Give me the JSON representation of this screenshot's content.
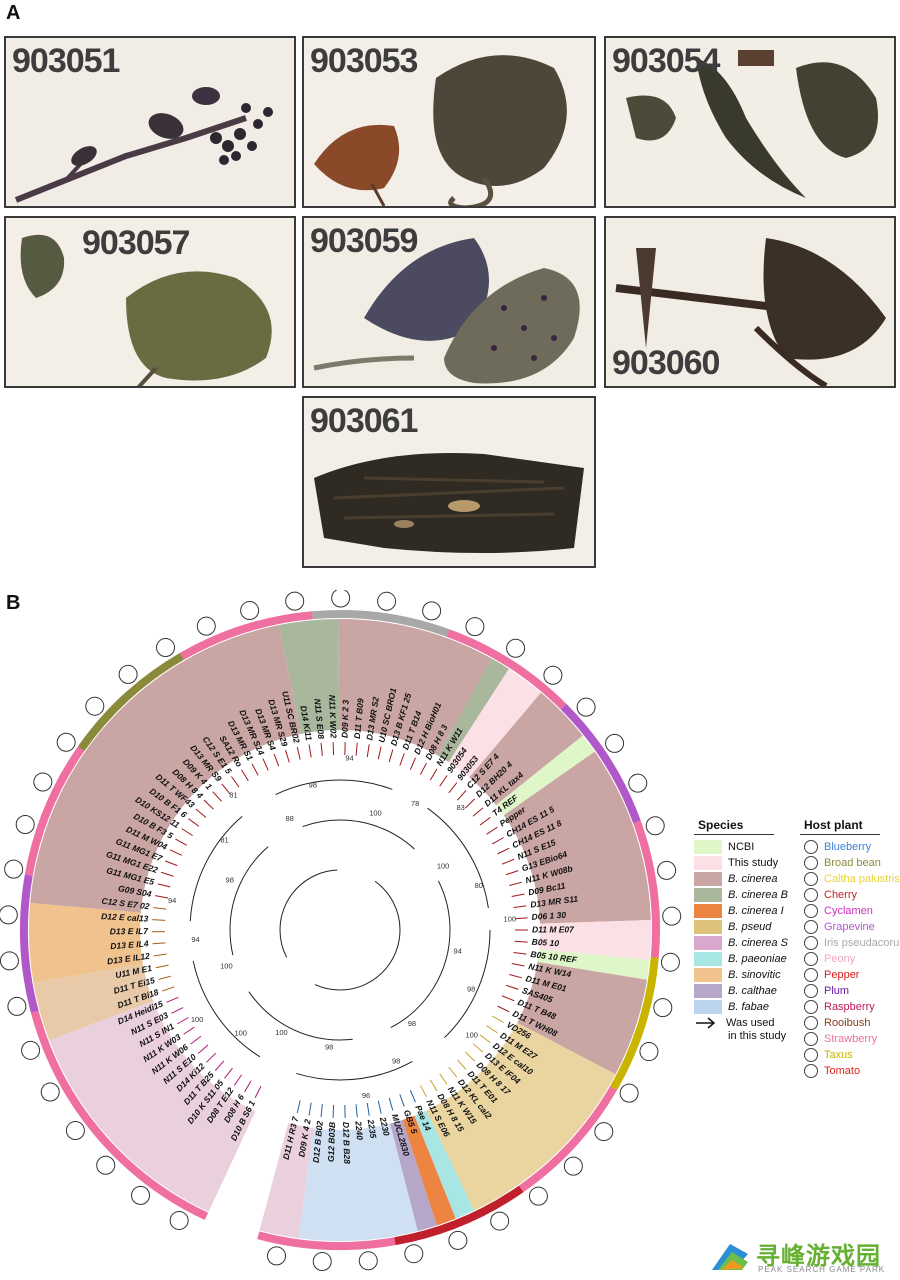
{
  "panel_a": {
    "letter": "A"
  },
  "panel_b": {
    "letter": "B"
  },
  "photos": [
    {
      "label": "903051"
    },
    {
      "label": "903053"
    },
    {
      "label": "903054"
    },
    {
      "label": "903057"
    },
    {
      "label": "903059"
    },
    {
      "label": "903060"
    },
    {
      "label": "903061"
    }
  ],
  "legend": {
    "species_header": "Species",
    "host_header": "Host plant",
    "species": [
      {
        "label": "NCBI",
        "color": "#dff7c8",
        "italic": false
      },
      {
        "label": "This study",
        "color": "#fbe0e6",
        "italic": false
      },
      {
        "label": "B. cinerea",
        "color": "#c9a5a3",
        "italic": true
      },
      {
        "label": "B. cinerea B",
        "color": "#a9b79c",
        "italic": true
      },
      {
        "label": "B. cinerea I",
        "color": "#ee8442",
        "italic": true
      },
      {
        "label": "B. pseud",
        "color": "#dcc27a",
        "italic": true
      },
      {
        "label": "B. cinerea S",
        "color": "#d9a8cc",
        "italic": true
      },
      {
        "label": "B. paeoniae",
        "color": "#a8e6e4",
        "italic": true
      },
      {
        "label": "B. sinovitic",
        "color": "#f0c28e",
        "italic": true
      },
      {
        "label": "B. calthae",
        "color": "#b6a6c8",
        "italic": true
      },
      {
        "label": "B. fabae",
        "color": "#b9d4ec",
        "italic": true
      }
    ],
    "hosts": [
      {
        "label": "Blueberry",
        "color": "#3f7fd6"
      },
      {
        "label": "Broad bean",
        "color": "#8a8a3a"
      },
      {
        "label": "Caltha palustris",
        "color": "#e8d43a"
      },
      {
        "label": "Cherry",
        "color": "#c0202c"
      },
      {
        "label": "Cyclamen",
        "color": "#cc2fc0"
      },
      {
        "label": "Grapevine",
        "color": "#b158c9"
      },
      {
        "label": "Iris pseudacorus",
        "color": "#a8a8a8"
      },
      {
        "label": "Peony",
        "color": "#f4a6c0"
      },
      {
        "label": "Pepper",
        "color": "#d81a1a"
      },
      {
        "label": "Plum",
        "color": "#6b17a8"
      },
      {
        "label": "Raspberry",
        "color": "#c2185b"
      },
      {
        "label": "Rooibush",
        "color": "#8b3a1a"
      },
      {
        "label": "Strawberry",
        "color": "#ee6fa0"
      },
      {
        "label": "Taxus",
        "color": "#c9b400"
      },
      {
        "label": "Tomato",
        "color": "#e0241b"
      }
    ],
    "used_note_line1": "Was used",
    "used_note_line2": "in this study"
  },
  "tree": {
    "leaves": [
      "D10 B S6 1",
      "D08 H 6",
      "D08 T E12",
      "D10 K S11 05",
      "D11 T B25",
      "D14 Ki12",
      "N11 S E10",
      "N11 K W06",
      "N11 K W03",
      "N11 S IN1",
      "N11 S E03",
      "D14 Heidi15",
      "D11 T Bi18",
      "D11 T Ei15",
      "U11 M E1",
      "D13 E IL12",
      "D13 E IL4",
      "D13 E IL7",
      "D12 E cal13",
      "C12 S E7 02",
      "G09 S04",
      "G11 MG1 E5",
      "G11 MG1 E22",
      "G11 MG1 E7",
      "D11 M W04",
      "D10 B F3 5",
      "D10 KS12 11",
      "D10 B F1 6",
      "D11 T WF43",
      "D08 H 8 4",
      "D09 K 4 1",
      "D13 MR S9",
      "C12 S E1 5",
      "SA12 Ro",
      "D13 MR S1",
      "D13 MR S14",
      "D13 MR S4",
      "D13 MR S29",
      "U11 SC BR02",
      "D14 Ki11",
      "N11 S E08",
      "N11 K W02",
      "D09 K 2 3",
      "D11 T B09",
      "D13 MR S2",
      "U10 SC BRO1",
      "D13 B KF1 25",
      "D11 T B14",
      "D12 H BioH01",
      "D08 H 8 3",
      "N11 K W11",
      "903054",
      "903053",
      "C12 S E7 4",
      "D12 BH20 4",
      "D11 KL tax4",
      "T4 REF",
      "Pepper",
      "CH14 ES 11 5",
      "CH14 ES 11 8",
      "N11 S E15",
      "G13 EBio64",
      "N11 K W08b",
      "D09 Bc11",
      "D13 MR S11",
      "D06 1 30",
      "D11 M E07",
      "B05 10",
      "B05 10 REF",
      "N11 K W14",
      "D11 M E01",
      "SAS405",
      "D11 T B48",
      "D11 T WH08",
      "VD256",
      "D11 M E27",
      "D12 E cal10",
      "D13 E IF04",
      "D08 H 8 17",
      "D11 T E01",
      "D12 KL cal2",
      "N11 K W15",
      "D08 H 8 15",
      "N11 S E06",
      "Pae 14",
      "GB5 5",
      "MUCL2830",
      "2230",
      "2235",
      "2240",
      "D12 B B28",
      "G12 B03B",
      "D12 B B02",
      "D09 K 4 2",
      "D11 H R3 7"
    ],
    "bootstrap": [
      "100",
      "100",
      "100",
      "100",
      "94",
      "94",
      "98",
      "81",
      "81",
      "88",
      "98",
      "94",
      "100",
      "78",
      "83",
      "100",
      "80",
      "100",
      "94",
      "98",
      "100",
      "98",
      "98",
      "96",
      "98"
    ]
  }
}
